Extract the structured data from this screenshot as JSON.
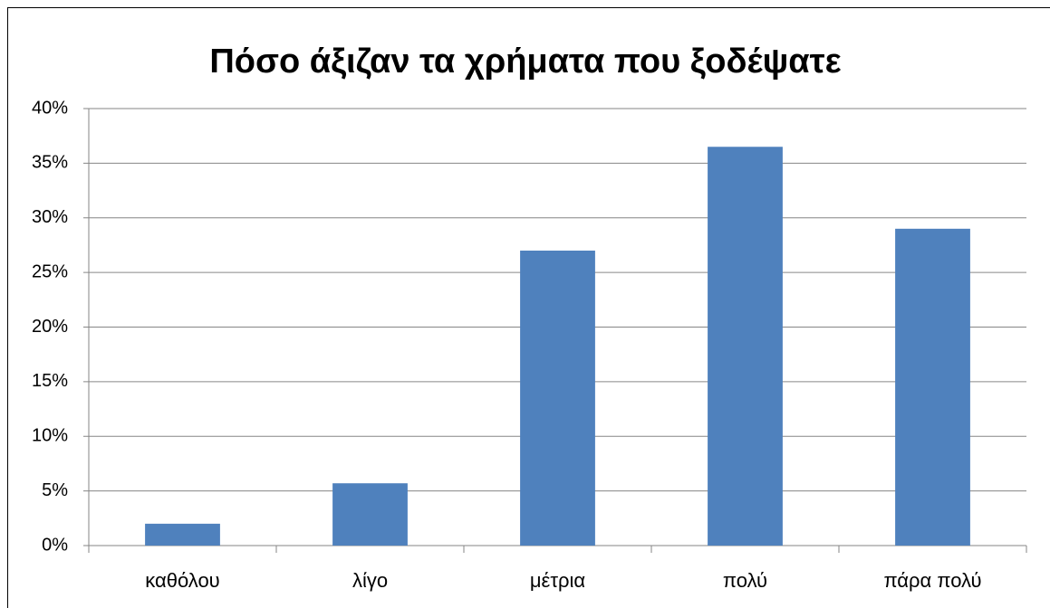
{
  "chart_data": {
    "type": "bar",
    "title": "Πόσο άξιζαν τα χρήματα που ξοδέψατε",
    "categories": [
      "καθόλου",
      "λίγο",
      "μέτρια",
      "πολύ",
      "πάρα πολύ"
    ],
    "values": [
      2,
      5.7,
      27,
      36.5,
      29
    ],
    "color": "#4f81bd",
    "ylim": [
      0,
      40
    ],
    "yticks": [
      {
        "value": 0,
        "label": "0%"
      },
      {
        "value": 5,
        "label": "5%"
      },
      {
        "value": 10,
        "label": "10%"
      },
      {
        "value": 15,
        "label": "15%"
      },
      {
        "value": 20,
        "label": "20%"
      },
      {
        "value": 25,
        "label": "25%"
      },
      {
        "value": 30,
        "label": "30%"
      },
      {
        "value": 35,
        "label": "35%"
      },
      {
        "value": 40,
        "label": "40%"
      }
    ],
    "grid": true
  }
}
